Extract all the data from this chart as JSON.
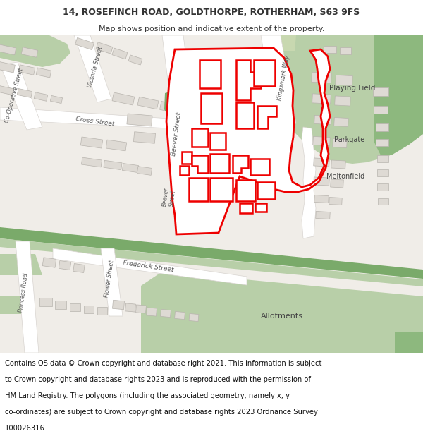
{
  "title": "14, ROSEFINCH ROAD, GOLDTHORPE, ROTHERHAM, S63 9FS",
  "subtitle": "Map shows position and indicative extent of the property.",
  "title_fontsize": 9.0,
  "subtitle_fontsize": 8.0,
  "copyright_fontsize": 7.2,
  "map_bg": "#f0ede8",
  "green_light": "#b8cfa8",
  "green_dark": "#7aaa6a",
  "green_playing": "#b8cfa8",
  "road_color": "#ffffff",
  "road_edge": "#d8d4d0",
  "building_fill": "#dedad4",
  "building_edge": "#b8b4ae",
  "red_line": "#ee0000",
  "text_dark": "#333333",
  "text_road": "#555555",
  "white": "#ffffff",
  "copyright_lines": [
    "Contains OS data © Crown copyright and database right 2021. This information is subject",
    "to Crown copyright and database rights 2023 and is reproduced with the permission of",
    "HM Land Registry. The polygons (including the associated geometry, namely x, y",
    "co-ordinates) are subject to Crown copyright and database rights 2023 Ordnance Survey",
    "100026316."
  ]
}
